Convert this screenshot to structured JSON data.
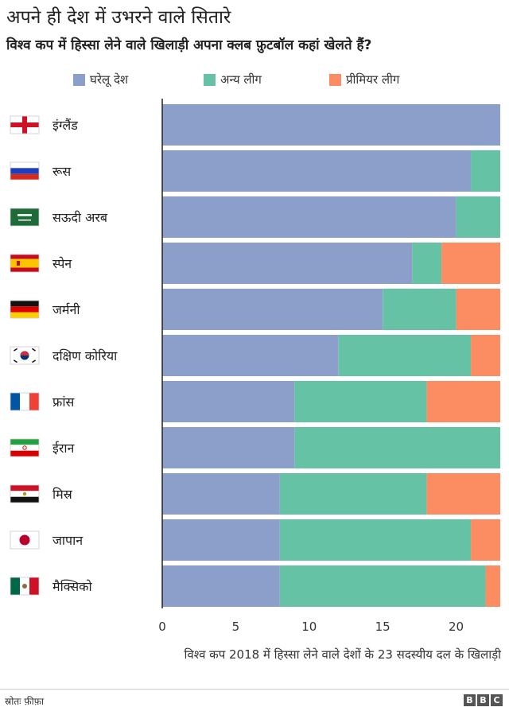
{
  "title": "अपने ही देश में उभरने वाले सितारे",
  "subtitle": "विश्व कप में हिस्सा लेने वाले खिलाड़ी अपना क्लब फ़ुटबॉल कहां खेलते हैं?",
  "source": "स्रोतः फ़ीफ़ा",
  "brand": [
    "B",
    "B",
    "C"
  ],
  "colors": {
    "domestic": "#8c9fcb",
    "other": "#66c2a5",
    "premier": "#fc8d62",
    "separator": "#ffffff",
    "axis": "#222222"
  },
  "chart_data": {
    "type": "bar",
    "orientation": "horizontal",
    "stacked": true,
    "categories": [
      "इंग्लैंड",
      "रूस",
      "सऊदी अरब",
      "स्पेन",
      "जर्मनी",
      "दक्षिण कोरिया",
      "फ्रांस",
      "ईरान",
      "मिस्र",
      "जापान",
      "मैक्सिको"
    ],
    "series": [
      {
        "name": "घरेलू देश",
        "color": "#8c9fcb",
        "values": [
          23,
          21,
          20,
          17,
          15,
          12,
          9,
          9,
          8,
          8,
          8
        ]
      },
      {
        "name": "अन्य लीग",
        "color": "#66c2a5",
        "values": [
          0,
          2,
          3,
          2,
          5,
          9,
          9,
          14,
          10,
          13,
          14
        ]
      },
      {
        "name": "प्रीमियर लीग",
        "color": "#fc8d62",
        "values": [
          0,
          0,
          0,
          4,
          3,
          2,
          5,
          0,
          5,
          2,
          1
        ]
      }
    ],
    "xlabel": "विश्व कप 2018 में हिस्सा लेने वाले देशों के 23 सदस्यीय दल के खिलाड़ी",
    "xlim": [
      0,
      23
    ],
    "xticks": [
      0,
      5,
      10,
      15,
      20
    ],
    "legend": "top",
    "grid": false
  },
  "flags": [
    "england-flag-icon",
    "russia-flag-icon",
    "saudi-arabia-flag-icon",
    "spain-flag-icon",
    "germany-flag-icon",
    "south-korea-flag-icon",
    "france-flag-icon",
    "iran-flag-icon",
    "egypt-flag-icon",
    "japan-flag-icon",
    "mexico-flag-icon"
  ]
}
